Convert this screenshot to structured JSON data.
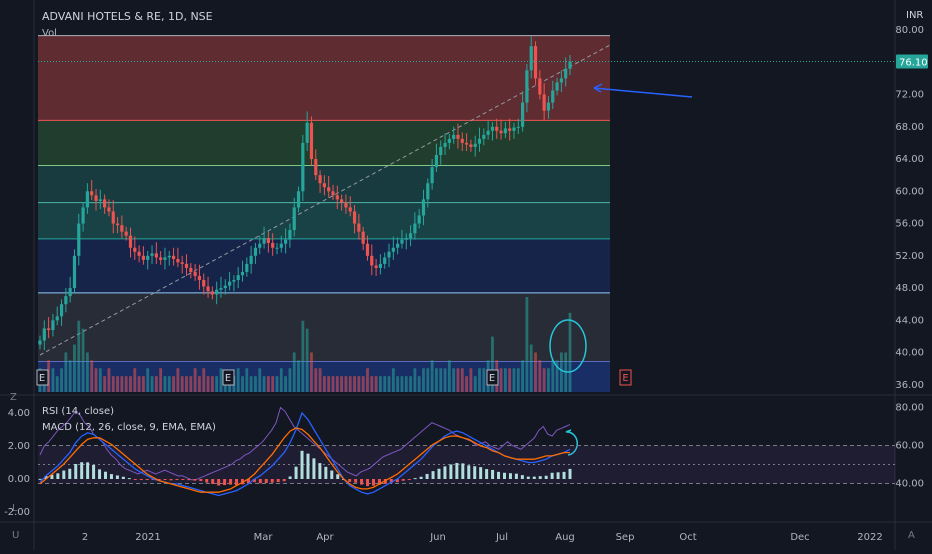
{
  "header": {
    "title": "ADVANI HOTELS & RE, 1D, NSE",
    "volume_label": "Vol",
    "currency": "INR"
  },
  "indicators": {
    "rsi_label": "RSI (14, close)",
    "macd_label": "MACD (12, 26, close, 9, EMA, EMA)"
  },
  "left_toolbar": {
    "z_label": "Z",
    "l_label": "L",
    "u_label": "U"
  },
  "corner": {
    "a_label": "A"
  },
  "earnings_marker": "E",
  "colors": {
    "up": "#26a69a",
    "down": "#ef5350",
    "current_price_bg": "#26a69a",
    "arrow": "#2962ff",
    "circle": "#26c6da"
  },
  "chart_data": {
    "type": "candlestick",
    "symbol": "ADVANI HOTELS & RE",
    "interval": "1D",
    "exchange": "NSE",
    "current_price": "76.10",
    "y_ticks": [
      "80.00",
      "72.00",
      "68.00",
      "64.00",
      "60.00",
      "56.00",
      "52.00",
      "48.00",
      "44.00",
      "40.00",
      "36.00"
    ],
    "x_ticks": [
      "2",
      "2021",
      "Mar",
      "Apr",
      "Jun",
      "Jul",
      "Aug",
      "Sep",
      "Oct",
      "Dec",
      "2022"
    ],
    "rsi_ticks": [
      "80.00",
      "60.00",
      "40.00"
    ],
    "macd_ticks": [
      "4.00",
      "2.00",
      "0.00",
      "-2.00"
    ],
    "fib_levels": [
      79.3,
      68.8,
      63.2,
      58.6,
      54.1,
      47.4,
      38.9
    ],
    "price_series": [
      41.5,
      43,
      42.8,
      44,
      44.5,
      46,
      47,
      48,
      52,
      56,
      58,
      60,
      59.5,
      58.8,
      59,
      58,
      57.5,
      56,
      55.8,
      55,
      54.5,
      53,
      52.5,
      52,
      51.5,
      52,
      52.3,
      51.8,
      51.5,
      51.8,
      52,
      51.6,
      51.2,
      51,
      50.5,
      50,
      49.5,
      49,
      48.2,
      47.6,
      47.2,
      47.8,
      48,
      48.3,
      48.8,
      49,
      49.6,
      50,
      51,
      52,
      53,
      53.5,
      54.2,
      53.6,
      53,
      53,
      53.5,
      54,
      55.2,
      58,
      60,
      66,
      68.5,
      64,
      62,
      61,
      60.5,
      60,
      59.5,
      59,
      58.6,
      58,
      57.5,
      56,
      55,
      53.5,
      52,
      50.8,
      50.5,
      51,
      51.8,
      52.5,
      53,
      53.5,
      54,
      54.2,
      54.8,
      56,
      57,
      59,
      61,
      63,
      64.5,
      65.5,
      66,
      66.5,
      67,
      66.5,
      66,
      65.8,
      65.5,
      65.9,
      66.5,
      67,
      67.5,
      68,
      67.5,
      67.2,
      67.8,
      67.5,
      67.9,
      68,
      71,
      75,
      78,
      74,
      72,
      70,
      71,
      72.5,
      73.5,
      74,
      75.2,
      76.1
    ],
    "volume_series": [
      3,
      2,
      4,
      3,
      2,
      3,
      5,
      4,
      6,
      9,
      8,
      5,
      4,
      3,
      3,
      2,
      3,
      2,
      2,
      2,
      2,
      2,
      3,
      2,
      2,
      3,
      2,
      2,
      3,
      2,
      2,
      2,
      3,
      2,
      2,
      2,
      3,
      2,
      3,
      2,
      2,
      2,
      3,
      2,
      2,
      2,
      3,
      2,
      3,
      2,
      2,
      3,
      2,
      2,
      2,
      2,
      3,
      2,
      3,
      5,
      4,
      9,
      8,
      5,
      3,
      3,
      2,
      2,
      2,
      2,
      2,
      2,
      2,
      2,
      2,
      2,
      3,
      2,
      2,
      2,
      2,
      2,
      3,
      2,
      2,
      2,
      2,
      3,
      2,
      3,
      3,
      4,
      3,
      3,
      3,
      4,
      3,
      3,
      3,
      2,
      3,
      2,
      3,
      3,
      4,
      7,
      4,
      3,
      3,
      3,
      3,
      3,
      4,
      12,
      6,
      5,
      4,
      3,
      3,
      4,
      4,
      5,
      5,
      10
    ],
    "rsi_series": [
      55,
      60,
      62,
      65,
      68,
      70,
      72,
      75,
      78,
      76,
      72,
      70,
      66,
      64,
      62,
      58,
      55,
      53,
      50,
      48,
      47,
      46,
      45,
      46,
      47,
      46,
      45,
      46,
      47,
      46,
      45,
      44,
      44,
      43,
      42,
      42,
      43,
      44,
      45,
      46,
      47,
      48,
      49,
      50,
      52,
      53,
      55,
      56,
      58,
      60,
      62,
      65,
      68,
      72,
      80,
      78,
      74,
      70,
      68,
      66,
      64,
      62,
      60,
      58,
      56,
      54,
      52,
      50,
      48,
      46,
      45,
      44,
      46,
      47,
      48,
      50,
      52,
      54,
      55,
      56,
      57,
      58,
      60,
      62,
      64,
      66,
      68,
      70,
      72,
      71,
      70,
      69,
      68,
      66,
      65,
      64,
      63,
      62,
      60,
      61,
      62,
      60,
      59,
      58,
      60,
      62,
      60,
      59,
      58,
      60,
      62,
      64,
      68,
      70,
      66,
      65,
      68,
      69,
      70,
      71
    ],
    "macd_series": [
      -0.2,
      0.2,
      0.5,
      0.8,
      1.2,
      1.6,
      2.2,
      2.6,
      2.8,
      2.7,
      2.4,
      2.1,
      1.8,
      1.5,
      1.2,
      0.9,
      0.6,
      0.4,
      0.2,
      0.0,
      -0.1,
      -0.2,
      -0.3,
      -0.3,
      -0.4,
      -0.5,
      -0.6,
      -0.7,
      -0.8,
      -0.9,
      -1.0,
      -0.9,
      -0.8,
      -0.7,
      -0.5,
      -0.3,
      0.0,
      0.2,
      0.5,
      0.8,
      1.2,
      1.6,
      2.2,
      3.0,
      4.0,
      3.6,
      3.0,
      2.4,
      1.8,
      1.2,
      0.6,
      0.0,
      -0.4,
      -0.6,
      -0.8,
      -0.9,
      -0.8,
      -0.6,
      -0.4,
      -0.2,
      0.0,
      0.3,
      0.6,
      0.9,
      1.2,
      1.6,
      2.0,
      2.3,
      2.6,
      2.8,
      2.9,
      2.8,
      2.6,
      2.4,
      2.2,
      2.0,
      1.8,
      1.6,
      1.4,
      1.3,
      1.2,
      1.1,
      1.0,
      1.0,
      1.1,
      1.2,
      1.4,
      1.5,
      1.6,
      1.8
    ],
    "signal_series": [
      -0.3,
      0.0,
      0.3,
      0.6,
      0.9,
      1.3,
      1.7,
      2.1,
      2.4,
      2.5,
      2.5,
      2.3,
      2.1,
      1.8,
      1.5,
      1.2,
      0.9,
      0.6,
      0.3,
      0.1,
      -0.1,
      -0.2,
      -0.3,
      -0.4,
      -0.5,
      -0.6,
      -0.7,
      -0.8,
      -0.8,
      -0.8,
      -0.8,
      -0.7,
      -0.6,
      -0.4,
      -0.2,
      0.0,
      0.3,
      0.7,
      1.1,
      1.5,
      2.0,
      2.5,
      2.9,
      3.1,
      3.0,
      2.7,
      2.3,
      1.9,
      1.4,
      0.9,
      0.4,
      0.0,
      -0.3,
      -0.5,
      -0.6,
      -0.6,
      -0.5,
      -0.3,
      -0.1,
      0.1,
      0.3,
      0.6,
      0.9,
      1.2,
      1.5,
      1.8,
      2.1,
      2.3,
      2.5,
      2.6,
      2.6,
      2.5,
      2.4,
      2.2,
      2.0,
      1.9,
      1.7,
      1.6,
      1.4,
      1.3,
      1.2,
      1.2,
      1.2,
      1.2,
      1.3,
      1.4,
      1.4,
      1.5,
      1.6,
      1.6
    ]
  }
}
